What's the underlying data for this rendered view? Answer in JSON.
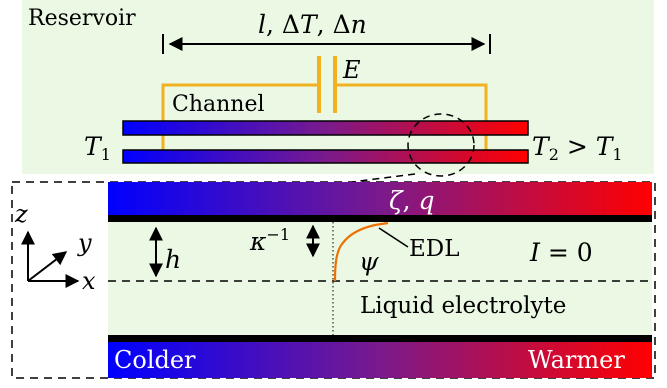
{
  "labels": {
    "reservoir": "Reservoir",
    "params": {
      "l": "l",
      "comma1": ", ",
      "delta": "Δ",
      "T": "T",
      "comma2": ", ",
      "n": "n"
    },
    "E": "E",
    "channel": "Channel",
    "T1_left": {
      "base": "T",
      "sub": "1"
    },
    "T2_right": {
      "T2": "T",
      "sub2": "2",
      "gt": " > ",
      "T1": "T",
      "sub1": "1"
    },
    "zeta_q": {
      "zeta": "ζ",
      "comma": ", ",
      "q": "q"
    },
    "h": "h",
    "kappa": {
      "base": "κ",
      "sup": "−1"
    },
    "psi": "ψ",
    "edl": "EDL",
    "current": {
      "I": "I",
      "eq": " = 0"
    },
    "liquid": "Liquid electrolyte",
    "colder": "Colder",
    "warmer": "Warmer",
    "axes": {
      "z": "z",
      "y": "y",
      "x": "x"
    }
  },
  "colors": {
    "reservoir_bg": "#eaf8e4",
    "cold": "#0000ff",
    "hot": "#ff0000",
    "wire": "#f2b11f",
    "edl_curve": "#ec7100",
    "wall": "#000000"
  }
}
